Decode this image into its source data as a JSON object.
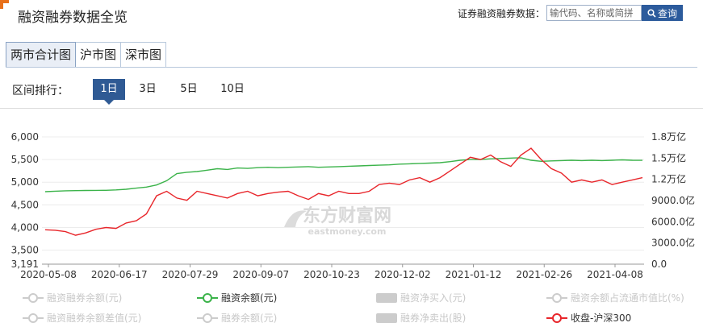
{
  "header": {
    "title": "融资融券数据全览",
    "search_label": "证券融资融券数据：",
    "search_placeholder": "输代码、名称或简拼",
    "search_button": "查询"
  },
  "tabs": [
    {
      "label": "两市合计图",
      "active": true
    },
    {
      "label": "沪市图",
      "active": false
    },
    {
      "label": "深市图",
      "active": false
    }
  ],
  "range": {
    "label": "区间排行：",
    "options": [
      "1日",
      "3日",
      "5日",
      "10日"
    ],
    "selected": "1日"
  },
  "watermark": {
    "text_cn": "东方财富网",
    "text_en": "eastmoney.com"
  },
  "colors": {
    "green": "#3bb34a",
    "red": "#e8262b",
    "accent": "#2f5a94",
    "legend_off": "#cccccc"
  },
  "legend": [
    {
      "label": "融资融券余额(元)",
      "color": "#cccccc",
      "symbol": "line",
      "on": false
    },
    {
      "label": "融资余额(元)",
      "color": "#3bb34a",
      "symbol": "line",
      "on": true
    },
    {
      "label": "融资净买入(元)",
      "color": "#cccccc",
      "symbol": "bar",
      "on": false
    },
    {
      "label": "融资余额占流通市值比(%)",
      "color": "#cccccc",
      "symbol": "line",
      "on": false
    },
    {
      "label": "融资融券余额差值(元)",
      "color": "#cccccc",
      "symbol": "line",
      "on": false
    },
    {
      "label": "融券余额(元)",
      "color": "#cccccc",
      "symbol": "line",
      "on": false
    },
    {
      "label": "融券净卖出(股)",
      "color": "#cccccc",
      "symbol": "bar",
      "on": false
    },
    {
      "label": "收盘-沪深300",
      "color": "#e8262b",
      "symbol": "line",
      "on": true
    }
  ],
  "chart_data": {
    "type": "line",
    "x_ticks": [
      "2020-05-08",
      "2020-06-17",
      "2020-07-29",
      "2020-09-07",
      "2020-10-23",
      "2020-12-02",
      "2021-01-12",
      "2021-02-26",
      "2021-04-08"
    ],
    "y_left_ticks": [
      "3,191",
      "3,500",
      "4,000",
      "4,500",
      "5,000",
      "5,500",
      "6,000"
    ],
    "y_left_range": [
      3191,
      6000
    ],
    "y_right_ticks": [
      "0.0",
      "3000.0亿",
      "6000.0亿",
      "9000.0亿",
      "1.2万亿",
      "1.5万亿",
      "1.8万亿"
    ],
    "y_right_range": [
      0,
      18000
    ],
    "grid": true,
    "series": [
      {
        "name": "融资余额(元)",
        "axis": "right",
        "color": "#3bb34a",
        "values": [
          10250,
          10320,
          10380,
          10400,
          10420,
          10430,
          10450,
          10500,
          10600,
          10750,
          10900,
          11200,
          11800,
          12800,
          13000,
          13100,
          13300,
          13500,
          13400,
          13600,
          13550,
          13650,
          13700,
          13650,
          13700,
          13750,
          13800,
          13700,
          13750,
          13800,
          13850,
          13900,
          13950,
          14000,
          14050,
          14150,
          14200,
          14250,
          14300,
          14350,
          14500,
          14700,
          14800,
          14800,
          14900,
          14950,
          15000,
          15050,
          14700,
          14550,
          14600,
          14650,
          14700,
          14650,
          14700,
          14650,
          14700,
          14750,
          14700,
          14680
        ]
      },
      {
        "name": "收盘-沪深300",
        "axis": "left",
        "color": "#e8262b",
        "values": [
          3950,
          3940,
          3910,
          3830,
          3880,
          3960,
          4000,
          3980,
          4100,
          4150,
          4300,
          4700,
          4800,
          4650,
          4600,
          4800,
          4750,
          4700,
          4650,
          4750,
          4800,
          4700,
          4750,
          4780,
          4800,
          4700,
          4620,
          4750,
          4700,
          4800,
          4750,
          4750,
          4800,
          4950,
          4980,
          4950,
          5050,
          5100,
          5000,
          5100,
          5250,
          5400,
          5550,
          5500,
          5600,
          5450,
          5350,
          5600,
          5750,
          5500,
          5300,
          5200,
          5000,
          5050,
          5000,
          5050,
          4950,
          5000,
          5050,
          5100
        ]
      }
    ]
  }
}
